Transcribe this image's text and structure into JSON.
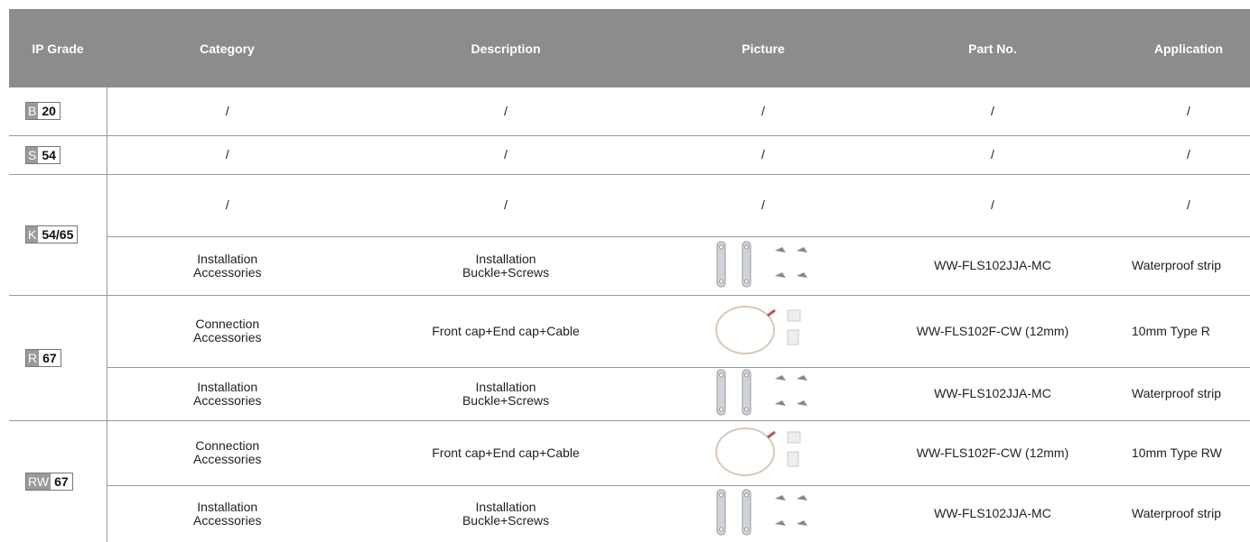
{
  "header": [
    "IP Grade",
    "Category",
    "Description",
    "Picture",
    "Part No.",
    "Application"
  ],
  "groups": [
    {
      "grade": {
        "letter": "B",
        "number": "20"
      },
      "rows": [
        {
          "category": "/",
          "description": "/",
          "picture": "/",
          "part_no": "/",
          "application": "/"
        }
      ]
    },
    {
      "grade": {
        "letter": "S",
        "number": "54"
      },
      "rows": [
        {
          "category": "/",
          "description": "/",
          "picture": "/",
          "part_no": "/",
          "application": "/"
        }
      ]
    },
    {
      "grade": {
        "letter": "K",
        "number": "54/65"
      },
      "rows": [
        {
          "category": "/",
          "description": "/",
          "picture": "/",
          "part_no": "/",
          "application": "/"
        },
        {
          "category": "Installation\nAccessories",
          "description": "Installation\nBuckle+Screws",
          "part_no": "WW-FLS102JJA-MC",
          "application": "Waterproof strip"
        }
      ]
    },
    {
      "grade": {
        "letter": "R",
        "number": "67"
      },
      "rows": [
        {
          "category": "Connection\nAccessories",
          "description": "Front cap+End cap+Cable",
          "part_no": "WW-FLS102F-CW (12mm)",
          "application": "10mm Type R"
        },
        {
          "category": "Installation\nAccessories",
          "description": "Installation\nBuckle+Screws",
          "part_no": "WW-FLS102JJA-MC",
          "application": "Waterproof strip"
        }
      ]
    },
    {
      "grade": {
        "letter": "RW",
        "number": "67"
      },
      "rows": [
        {
          "category": "Connection\nAccessories",
          "description": "Front cap+End cap+Cable",
          "part_no": "WW-FLS102F-CW (12mm)",
          "application": "10mm Type RW"
        },
        {
          "category": "Installation\nAccessories",
          "description": "Installation\nBuckle+Screws",
          "part_no": "WW-FLS102JJA-MC",
          "application": "Waterproof strip"
        }
      ]
    }
  ]
}
